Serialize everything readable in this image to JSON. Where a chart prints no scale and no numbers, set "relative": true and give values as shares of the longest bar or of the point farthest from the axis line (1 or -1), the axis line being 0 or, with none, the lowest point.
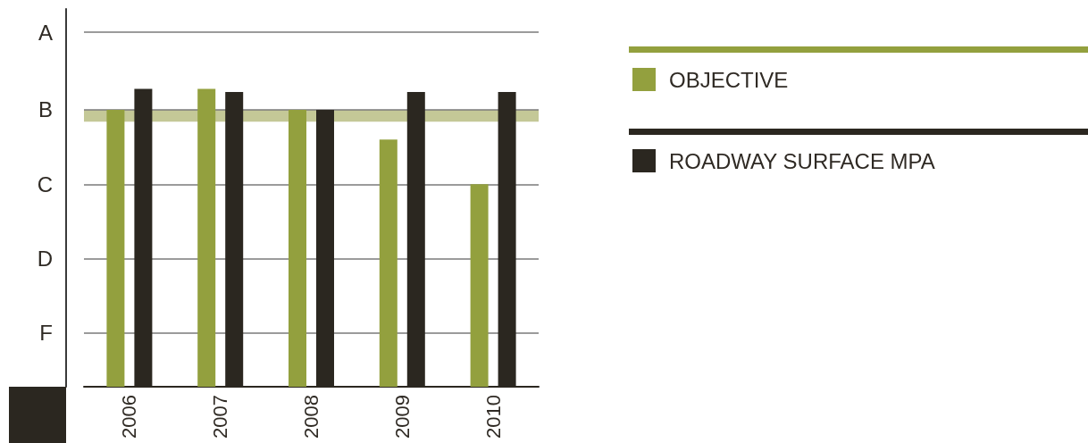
{
  "chart_data": {
    "type": "bar",
    "relative": true,
    "categories": [
      "2006",
      "2007",
      "2008",
      "2009",
      "2010"
    ],
    "series": [
      {
        "name": "OBJECTIVE",
        "color": "#93a03e",
        "values": [
          0.93,
          1.0,
          0.93,
          0.83,
          0.68
        ]
      },
      {
        "name": "ROADWAY SURFACE MPA",
        "color": "#2b2720",
        "values": [
          1.0,
          0.99,
          0.93,
          0.99,
          0.99
        ]
      }
    ],
    "ref_lines": [
      {
        "axis": "y",
        "value": 1.19,
        "label": "A",
        "color": "#7a7a7a"
      },
      {
        "axis": "y",
        "value": 0.93,
        "label": "B",
        "color": "#7a7a7a"
      },
      {
        "axis": "y",
        "value": 0.68,
        "label": "C",
        "color": "#7a7a7a"
      },
      {
        "axis": "y",
        "value": 0.43,
        "label": "D",
        "color": "#7a7a7a"
      },
      {
        "axis": "y",
        "value": 0.18,
        "label": "F",
        "color": "#7a7a7a"
      }
    ],
    "bands": [
      {
        "axis": "y",
        "from": 0.89,
        "to": 0.93,
        "color": "#c4c897"
      }
    ],
    "legend": "right"
  }
}
